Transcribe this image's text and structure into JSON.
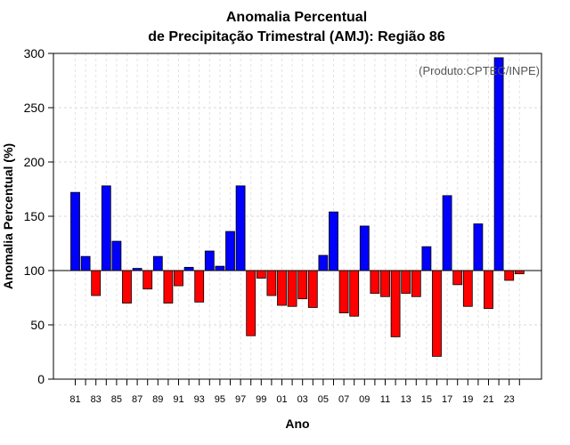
{
  "chart_data": {
    "type": "bar",
    "title": "Anomalia Percentual",
    "subtitle": "de Precipitação Trimestral (AMJ): Região 86",
    "xlabel": "Ano",
    "ylabel": "Anomalia Percentual (%)",
    "credit": "(Produto:CPTEC/INPE)",
    "ylim": [
      0,
      300
    ],
    "yticks": [
      0,
      50,
      100,
      150,
      200,
      250,
      300
    ],
    "baseline": 100,
    "grid": true,
    "colors": {
      "above": "#0000ff",
      "below": "#ff0000"
    },
    "categories": [
      "81",
      "82",
      "83",
      "84",
      "85",
      "86",
      "87",
      "88",
      "89",
      "90",
      "91",
      "92",
      "93",
      "94",
      "95",
      "96",
      "97",
      "98",
      "99",
      "00",
      "01",
      "02",
      "03",
      "04",
      "05",
      "06",
      "07",
      "08",
      "09",
      "10",
      "11",
      "12",
      "13",
      "14",
      "15",
      "16",
      "17",
      "18",
      "19",
      "20",
      "21",
      "22",
      "23",
      "24"
    ],
    "xtick_labels": [
      "81",
      "83",
      "85",
      "87",
      "89",
      "91",
      "93",
      "95",
      "97",
      "99",
      "01",
      "03",
      "05",
      "07",
      "09",
      "11",
      "13",
      "15",
      "17",
      "19",
      "21",
      "23"
    ],
    "values": [
      172,
      113,
      77,
      178,
      127,
      70,
      102,
      83,
      113,
      70,
      86,
      103,
      71,
      118,
      104,
      136,
      178,
      40,
      93,
      77,
      68,
      67,
      74,
      66,
      114,
      154,
      61,
      58,
      141,
      79,
      76,
      39,
      79,
      76,
      122,
      21,
      169,
      87,
      67,
      143,
      65,
      296,
      91,
      97
    ]
  }
}
